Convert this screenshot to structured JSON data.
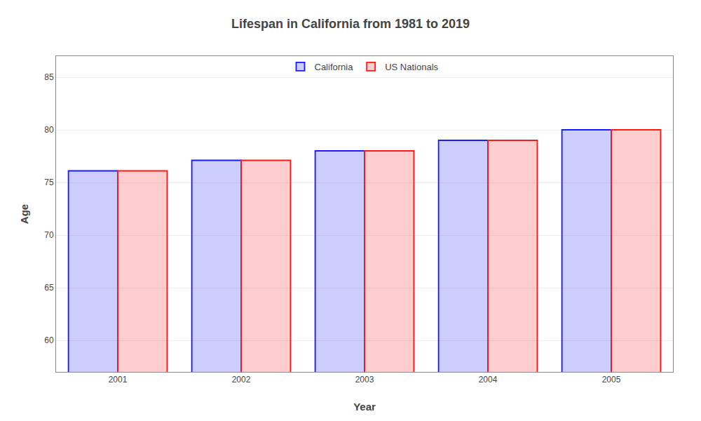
{
  "chart_data": {
    "type": "bar",
    "title": "Lifespan in California from 1981 to 2019",
    "xlabel": "Year",
    "ylabel": "Age",
    "categories": [
      "2001",
      "2002",
      "2003",
      "2004",
      "2005"
    ],
    "series": [
      {
        "name": "California",
        "color": "#1a1aff",
        "values": [
          76.1,
          77.1,
          78.0,
          79.0,
          80.0
        ]
      },
      {
        "name": "US Nationals",
        "color": "#ff1a1a",
        "values": [
          76.1,
          77.1,
          78.0,
          79.0,
          80.0
        ]
      }
    ],
    "ylim": [
      57,
      87
    ],
    "yticks": [
      60,
      65,
      70,
      75,
      80,
      85
    ],
    "grid": true,
    "legend": "top"
  }
}
